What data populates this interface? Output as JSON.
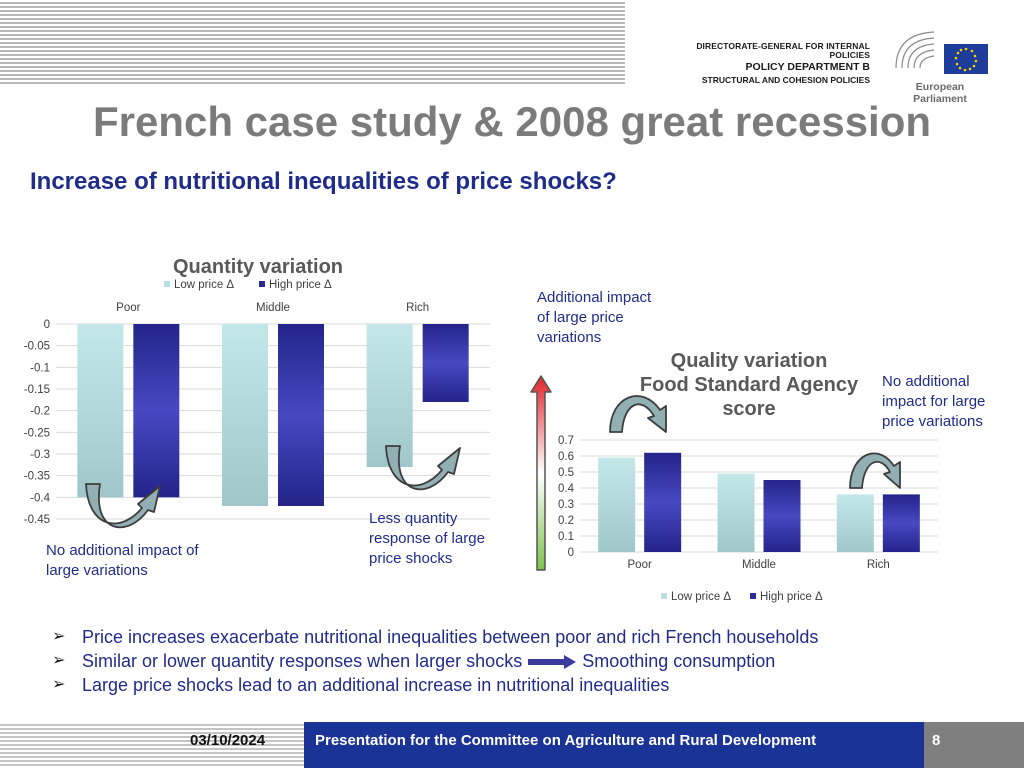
{
  "header": {
    "dg_line1": "DIRECTORATE-GENERAL FOR INTERNAL POLICIES",
    "dg_line2": "POLICY DEPARTMENT B",
    "dg_line3": "STRUCTURAL AND COHESION POLICIES",
    "ep_name": "European Parliament"
  },
  "slide": {
    "title": "French case study & 2008 great recession",
    "subtitle": "Increase of nutritional inequalities of price shocks?"
  },
  "colors": {
    "low_price": "#b7e0e3",
    "high_price": "#2b2b96",
    "note_text": "#1f2c8a",
    "footer_bar": "#1a3396"
  },
  "notes": {
    "no_additional_impact": "No additional impact of large variations",
    "less_quantity": "Less quantity response of large price shocks",
    "additional_impact": "Additional impact of large price variations",
    "no_additional_impact_right": "No additional impact for large price variations"
  },
  "chart_data": [
    {
      "type": "bar",
      "title": "Quantity variation",
      "categories": [
        "Poor",
        "Middle",
        "Rich"
      ],
      "series": [
        {
          "name": "Low  price Δ",
          "values": [
            -0.4,
            -0.42,
            -0.33
          ]
        },
        {
          "name": "High price  Δ",
          "values": [
            -0.4,
            -0.42,
            -0.18
          ]
        }
      ],
      "ylim": [
        -0.45,
        0
      ],
      "yticks": [
        "0",
        "-0.05",
        "-0.1",
        "-0.15",
        "-0.2",
        "-0.25",
        "-0.3",
        "-0.35",
        "-0.4",
        "-0.45"
      ],
      "ytick_values": [
        0,
        -0.05,
        -0.1,
        -0.15,
        -0.2,
        -0.25,
        -0.3,
        -0.35,
        -0.4,
        -0.45
      ],
      "grid": true,
      "legend": "top"
    },
    {
      "type": "bar",
      "title": "Quality variation Food Standard Agency score",
      "categories": [
        "Poor",
        "Middle",
        "Rich"
      ],
      "series": [
        {
          "name": "Low  price Δ",
          "values": [
            0.59,
            0.49,
            0.36
          ]
        },
        {
          "name": "High price  Δ",
          "values": [
            0.62,
            0.45,
            0.36
          ]
        }
      ],
      "ylim": [
        0,
        0.7
      ],
      "yticks": [
        "0.7",
        "0.6",
        "0.5",
        "0.4",
        "0.3",
        "0.2",
        "0.1",
        "0"
      ],
      "ytick_values": [
        0.7,
        0.6,
        0.5,
        0.4,
        0.3,
        0.2,
        0.1,
        0
      ],
      "grid": true,
      "legend": "bottom"
    }
  ],
  "bullets": {
    "b1": "Price increases exacerbate nutritional inequalities between poor and rich French households",
    "b2a": "Similar or lower quantity responses when larger shocks",
    "b2b": "Smoothing consumption",
    "b3": "Large price shocks lead to an additional increase in nutritional inequalities"
  },
  "footer": {
    "date": "03/10/2024",
    "text": "Presentation for the Committee on Agriculture and Rural Development",
    "page": "8"
  }
}
